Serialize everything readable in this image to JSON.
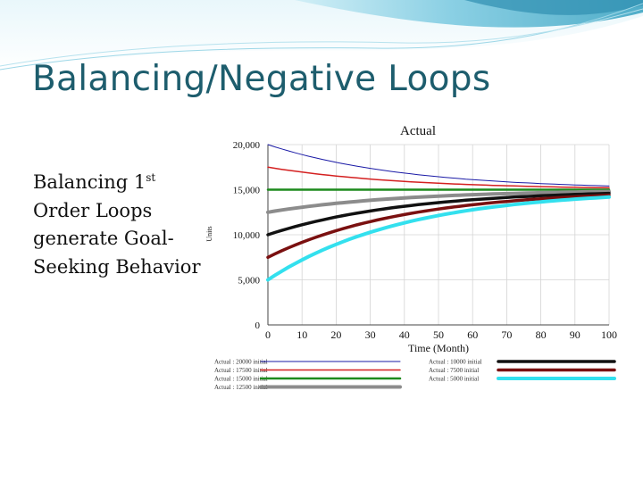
{
  "slide": {
    "title": "Balancing/Negative Loops",
    "body_text": {
      "line1_prefix": "Balancing 1",
      "line1_sup": "st",
      "line2": "Order Loops",
      "line3": "generate Goal-",
      "line4": "Seeking Behavior"
    }
  },
  "colors": {
    "title": "#1d5d6d",
    "banner_light": "#d7f0f7",
    "banner_mid": "#8fd0e3",
    "banner_dark": "#3aa0bf"
  },
  "chart_data": {
    "type": "line",
    "title": "Actual",
    "xlabel": "Time (Month)",
    "ylabel": "Units",
    "xlim": [
      0,
      100
    ],
    "ylim": [
      0,
      20000
    ],
    "x_ticks": [
      0,
      10,
      20,
      30,
      40,
      50,
      60,
      70,
      80,
      90,
      100
    ],
    "y_ticks": [
      0,
      5000,
      10000,
      15000,
      20000
    ],
    "y_tick_labels": [
      "0",
      "5,000",
      "10,000",
      "15,000",
      "20,000"
    ],
    "grid": true,
    "legend_placement": "bottom",
    "goal": 15000,
    "series": [
      {
        "name": "Actual : 20000 initial",
        "initial": 20000,
        "color": "#1a1aa6",
        "width": 1
      },
      {
        "name": "Actual : 17500 initial",
        "initial": 17500,
        "color": "#d42020",
        "width": 1.5
      },
      {
        "name": "Actual : 15000 initial",
        "initial": 15000,
        "color": "#1d8a1d",
        "width": 2.5
      },
      {
        "name": "Actual : 12500 initial",
        "initial": 12500,
        "color": "#8c8c8c",
        "width": 4
      },
      {
        "name": "Actual : 10000 initial",
        "initial": 10000,
        "color": "#111111",
        "width": 3.5
      },
      {
        "name": "Actual : 7500 initial",
        "initial": 7500,
        "color": "#7a1010",
        "width": 3.5
      },
      {
        "name": "Actual : 5000 initial",
        "initial": 5000,
        "color": "#33e0ee",
        "width": 4
      }
    ]
  }
}
